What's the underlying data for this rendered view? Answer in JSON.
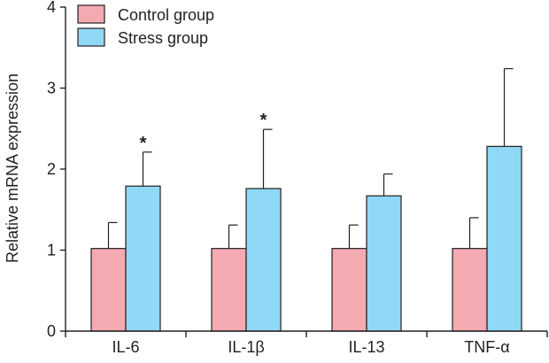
{
  "chart_data": {
    "type": "bar",
    "title": "",
    "xlabel": "",
    "ylabel": "Relative mRNA expression",
    "ylim": [
      0,
      4
    ],
    "yticks": [
      "0",
      "1",
      "2",
      "3",
      "4"
    ],
    "categories": [
      "IL-6",
      "IL-1β",
      "IL-13",
      "TNF-α"
    ],
    "series": [
      {
        "name": "Control group",
        "color": "#f5aab2",
        "values": [
          1.02,
          1.02,
          1.02,
          1.02
        ],
        "errors": [
          0.32,
          0.29,
          0.29,
          0.38
        ]
      },
      {
        "name": "Stress group",
        "color": "#8fd8f6",
        "values": [
          1.79,
          1.76,
          1.67,
          2.28
        ],
        "errors": [
          0.42,
          0.73,
          0.27,
          0.96
        ]
      }
    ],
    "significance": [
      "*",
      "*",
      "",
      ""
    ],
    "legend_position": "top-left",
    "grid": false
  }
}
